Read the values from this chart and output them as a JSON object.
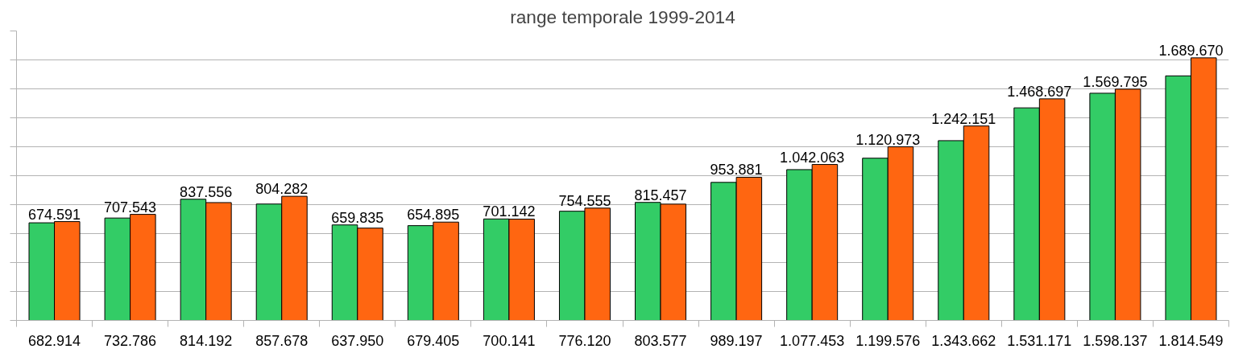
{
  "chart_data": {
    "type": "bar",
    "title": "range temporale 1999-2014",
    "categories": [
      null,
      null,
      null,
      null,
      null,
      null,
      null,
      null,
      null,
      null,
      null,
      null,
      null,
      null,
      null,
      null
    ],
    "series": [
      {
        "color": "#33cc66",
        "values": [
          674591,
          707543,
          837556,
          804282,
          659835,
          654895,
          701142,
          754555,
          815457,
          953881,
          1042063,
          1120973,
          1242151,
          1468697,
          1569795,
          1689670
        ],
        "value_labels": [
          "674.591",
          "707.543",
          "837.556",
          "804.282",
          "659.835",
          "654.895",
          "701.142",
          "754.555",
          "815.457",
          "953.881",
          "1.042.063",
          "1.120.973",
          "1.242.151",
          "1.468.697",
          "1.569.795",
          "1.689.670"
        ]
      },
      {
        "color": "#ff6611",
        "values": [
          682914,
          732786,
          814192,
          857678,
          637950,
          679405,
          700141,
          776120,
          803577,
          989197,
          1077453,
          1199576,
          1343662,
          1531171,
          1598137,
          1814549
        ],
        "value_labels": [
          "682.914",
          "732.786",
          "814.192",
          "857.678",
          "637.950",
          "679.405",
          "700.141",
          "776.120",
          "803.577",
          "989.197",
          "1.077.453",
          "1.199.576",
          "1.343.662",
          "1.531.171",
          "1.598.137",
          "1.814.549"
        ]
      }
    ],
    "ylim": [
      0,
      2000000
    ],
    "yticks": [
      {
        "value": 0,
        "label": null
      },
      {
        "value": 200000,
        "label": null
      },
      {
        "value": 400000,
        "label": null
      },
      {
        "value": 600000,
        "label": null
      },
      {
        "value": 800000,
        "label": null
      },
      {
        "value": 1000000,
        "label": null
      },
      {
        "value": 1200000,
        "label": null
      },
      {
        "value": 1400000,
        "label": null
      },
      {
        "value": 1600000,
        "label": null
      },
      {
        "value": 1800000,
        "label": null
      },
      {
        "value": 2000000,
        "label": null
      }
    ],
    "grid": "y",
    "tick_labels": false
  }
}
